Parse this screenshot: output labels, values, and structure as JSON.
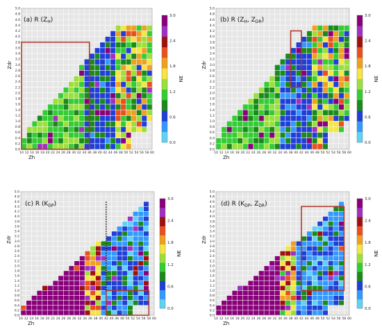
{
  "chart_data": [
    {
      "type": "heatmap",
      "panel": "(a)",
      "title_prefix": "(a)",
      "title_base": "R (Z",
      "title_sub": "H",
      "title_close": ")",
      "xlabel": "Zh",
      "ylabel": "Zdr",
      "colorbar_label": "NE",
      "x_ticks": [
        10,
        12,
        14,
        16,
        18,
        20,
        22,
        24,
        26,
        28,
        30,
        32,
        34,
        36,
        38,
        40,
        42,
        44,
        46,
        48,
        50,
        52,
        54,
        56,
        58,
        60
      ],
      "y_ticks": [
        "0.0",
        "0.2",
        "0.4",
        "0.6",
        "0.8",
        "1.0",
        "1.2",
        "1.4",
        "1.6",
        "1.8",
        "2.0",
        "2.2",
        "2.4",
        "2.6",
        "2.8",
        "3.0",
        "3.2",
        "3.4",
        "3.6",
        "3.8",
        "4.0",
        "4.2",
        "4.4",
        "4.6",
        "4.8",
        "5.0"
      ],
      "xlim": [
        10,
        60
      ],
      "ylim": [
        0,
        5
      ],
      "colorbar_ticks": [
        "0.0",
        "0.6",
        "1.2",
        "1.8",
        "2.4",
        "3.0"
      ],
      "clim": [
        0,
        3
      ],
      "highlight_box": {
        "x": [
          10,
          36
        ],
        "y": [
          0,
          3.8
        ]
      },
      "highlight_line": null,
      "seed": 11,
      "base_ne": 1.05,
      "shape": "a"
    },
    {
      "type": "heatmap",
      "panel": "(b)",
      "title_prefix": "(b)",
      "title_base": "R (Z",
      "title_sub": "H",
      "title_mid": ", Z",
      "title_sub2": "DR",
      "title_close": ")",
      "xlabel": "Zh",
      "ylabel": "Zdr",
      "colorbar_label": "NE",
      "x_ticks": [
        10,
        12,
        14,
        16,
        18,
        20,
        22,
        24,
        26,
        28,
        30,
        32,
        34,
        36,
        38,
        40,
        42,
        44,
        46,
        48,
        50,
        52,
        54,
        56,
        58,
        60
      ],
      "y_ticks": [
        "0.0",
        "0.2",
        "0.4",
        "0.6",
        "0.8",
        "1.0",
        "1.2",
        "1.4",
        "1.6",
        "1.8",
        "2.0",
        "2.2",
        "2.4",
        "2.6",
        "2.8",
        "3.0",
        "3.2",
        "3.4",
        "3.6",
        "3.8",
        "4.0",
        "4.2",
        "4.4",
        "4.6",
        "4.8",
        "5.0"
      ],
      "xlim": [
        10,
        60
      ],
      "ylim": [
        0,
        5
      ],
      "colorbar_ticks": [
        "0.0",
        "0.6",
        "1.2",
        "1.8",
        "2.4",
        "3.0"
      ],
      "clim": [
        0,
        3
      ],
      "highlight_box": {
        "x": [
          38,
          42
        ],
        "y": [
          2.2,
          4.2
        ]
      },
      "highlight_line": null,
      "seed": 23,
      "base_ne": 1.0,
      "shape": "b"
    },
    {
      "type": "heatmap",
      "panel": "(c)",
      "title_prefix": "(c)",
      "title_base": "R (K",
      "title_sub": "DP",
      "title_close": ")",
      "xlabel": "Zh",
      "ylabel": "Zdr",
      "colorbar_label": "NE",
      "x_ticks": [
        10,
        12,
        14,
        16,
        18,
        20,
        22,
        24,
        26,
        28,
        30,
        32,
        34,
        36,
        38,
        40,
        42,
        44,
        46,
        48,
        50,
        52,
        54,
        56,
        58,
        60
      ],
      "y_ticks": [
        "0.0",
        "0.2",
        "0.4",
        "0.6",
        "0.8",
        "1.0",
        "1.2",
        "1.4",
        "1.6",
        "1.8",
        "2.0",
        "2.2",
        "2.4",
        "2.6",
        "2.8",
        "3.0",
        "3.2",
        "3.4",
        "3.6",
        "3.8",
        "4.0",
        "4.2",
        "4.4",
        "4.6",
        "4.8",
        "5.0"
      ],
      "xlim": [
        10,
        60
      ],
      "ylim": [
        0,
        5
      ],
      "colorbar_ticks": [
        "0.0",
        "0.6",
        "1.2",
        "1.8",
        "2.4",
        "3.0"
      ],
      "clim": [
        0,
        3
      ],
      "highlight_box": {
        "x": [
          42,
          58
        ],
        "y": [
          0,
          1.0
        ]
      },
      "highlight_line": {
        "x": 42,
        "y": [
          1.0,
          4.6
        ]
      },
      "seed": 37,
      "base_ne": 0.8,
      "shape": "c"
    },
    {
      "type": "heatmap",
      "panel": "(d)",
      "title_prefix": "(d)",
      "title_base": "R (K",
      "title_sub": "DP",
      "title_mid": ", Z",
      "title_sub2": "DR",
      "title_close": ")",
      "xlabel": "Zh",
      "ylabel": "Zdr",
      "colorbar_label": "NE",
      "x_ticks": [
        10,
        12,
        14,
        16,
        18,
        20,
        22,
        24,
        26,
        28,
        30,
        32,
        34,
        36,
        38,
        40,
        42,
        44,
        46,
        48,
        50,
        52,
        54,
        56,
        58,
        60
      ],
      "y_ticks": [
        "0.0",
        "0.2",
        "0.4",
        "0.6",
        "0.8",
        "1.0",
        "1.2",
        "1.4",
        "1.6",
        "1.8",
        "2.0",
        "2.2",
        "2.4",
        "2.6",
        "2.8",
        "3.0",
        "3.2",
        "3.4",
        "3.6",
        "3.8",
        "4.0",
        "4.2",
        "4.4",
        "4.6",
        "4.8",
        "5.0"
      ],
      "xlim": [
        10,
        60
      ],
      "ylim": [
        0,
        5
      ],
      "colorbar_ticks": [
        "0.0",
        "0.6",
        "1.2",
        "1.8",
        "2.4",
        "3.0"
      ],
      "clim": [
        0,
        3
      ],
      "highlight_box": {
        "x": [
          42,
          58
        ],
        "y": [
          1.0,
          4.4
        ]
      },
      "highlight_line": null,
      "seed": 51,
      "base_ne": 0.8,
      "shape": "d"
    }
  ],
  "colors": {
    "grid_bg": "#e6e6e6",
    "grid_line": "#ffffff",
    "highlight": "#b03a2e",
    "colormap": [
      "#5fd3f3",
      "#3399ff",
      "#1f3fd6",
      "#1a8a1a",
      "#33cc33",
      "#9be03a",
      "#f5e642",
      "#f0a020",
      "#e85020",
      "#a01010",
      "#a030c0",
      "#8a007a"
    ]
  }
}
